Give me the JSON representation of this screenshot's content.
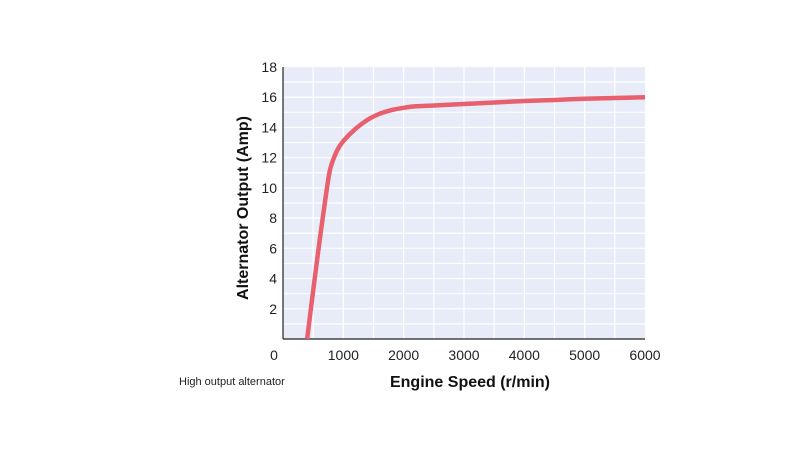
{
  "caption": "High output alternator",
  "colors": {
    "plot_background": "#e8ecf8",
    "grid": "#ffffff",
    "axis": "#222222",
    "curve": "#e8606e"
  },
  "chart_data": {
    "type": "line",
    "title": "",
    "xlabel": "Engine Speed (r/min)",
    "ylabel": "Alternator Output (Amp)",
    "xlim": [
      0,
      6000
    ],
    "ylim": [
      0,
      18
    ],
    "x_ticks": [
      0,
      1000,
      2000,
      3000,
      4000,
      5000,
      6000
    ],
    "y_ticks": [
      0,
      2,
      4,
      6,
      8,
      10,
      12,
      14,
      16,
      18
    ],
    "grid": true,
    "series": [
      {
        "name": "",
        "x": [
          400,
          500,
          600,
          700,
          760,
          800,
          900,
          1000,
          1200,
          1400,
          1600,
          1800,
          2000,
          2200,
          2500,
          3000,
          3500,
          4000,
          4500,
          5000,
          5500,
          6000
        ],
        "y": [
          0,
          3.2,
          6.3,
          9.2,
          10.8,
          11.5,
          12.5,
          13.1,
          13.9,
          14.5,
          14.9,
          15.15,
          15.3,
          15.4,
          15.45,
          15.55,
          15.65,
          15.75,
          15.82,
          15.9,
          15.95,
          16.0
        ]
      }
    ]
  }
}
